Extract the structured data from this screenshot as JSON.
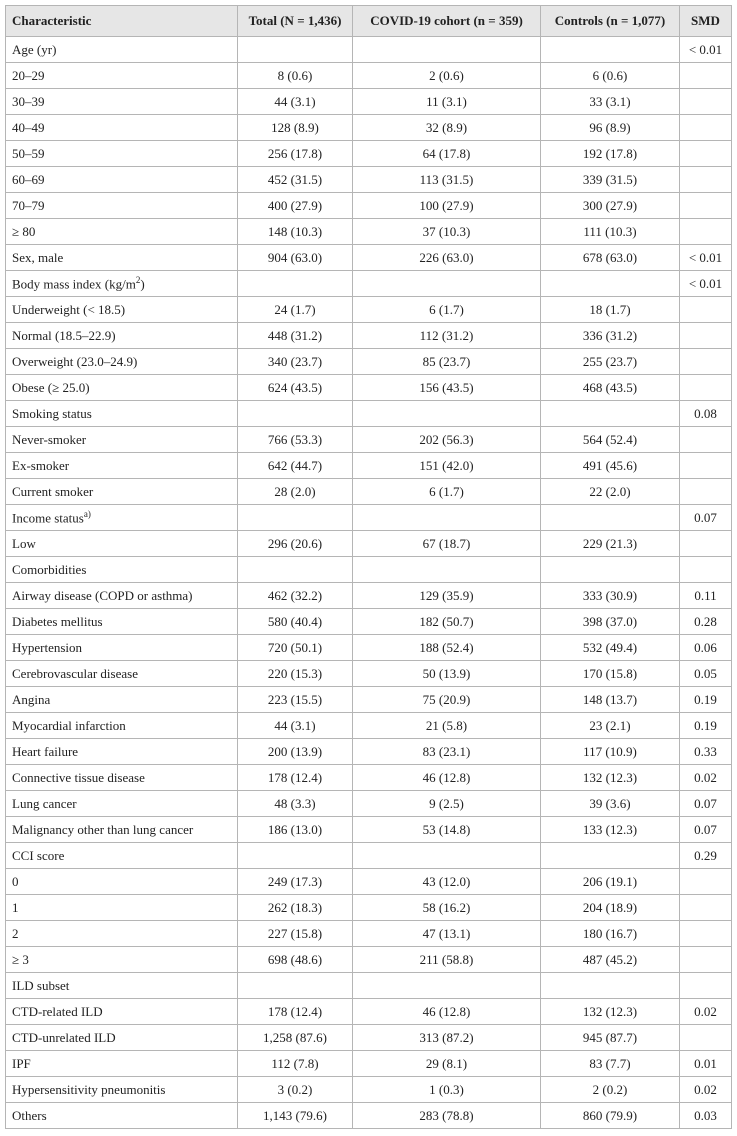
{
  "table": {
    "header": [
      "Characteristic",
      "Total (N = 1,436)",
      "COVID-19 cohort (n = 359)",
      "Controls (n = 1,077)",
      "SMD"
    ],
    "rows": [
      [
        "Age (yr)",
        null,
        null,
        null,
        "< 0.01"
      ],
      [
        "20–29",
        "8 (0.6)",
        "2 (0.6)",
        "6 (0.6)",
        null
      ],
      [
        "30–39",
        "44 (3.1)",
        "11 (3.1)",
        "33 (3.1)",
        null
      ],
      [
        "40–49",
        "128 (8.9)",
        "32 (8.9)",
        "96 (8.9)",
        null
      ],
      [
        "50–59",
        "256 (17.8)",
        "64 (17.8)",
        "192 (17.8)",
        null
      ],
      [
        "60–69",
        "452 (31.5)",
        "113 (31.5)",
        "339 (31.5)",
        null
      ],
      [
        "70–79",
        "400 (27.9)",
        "100 (27.9)",
        "300 (27.9)",
        null
      ],
      [
        "≥ 80",
        "148 (10.3)",
        "37 (10.3)",
        "111 (10.3)",
        null
      ],
      [
        "Sex, male",
        "904 (63.0)",
        "226 (63.0)",
        "678 (63.0)",
        "< 0.01"
      ],
      [
        {
          "text": "Body mass index (kg/m",
          "sup": "2",
          "tail": ")"
        },
        null,
        null,
        null,
        "< 0.01"
      ],
      [
        "Underweight (< 18.5)",
        "24 (1.7)",
        "6 (1.7)",
        "18 (1.7)",
        null
      ],
      [
        "Normal (18.5–22.9)",
        "448 (31.2)",
        "112 (31.2)",
        "336 (31.2)",
        null
      ],
      [
        "Overweight (23.0–24.9)",
        "340 (23.7)",
        "85 (23.7)",
        "255 (23.7)",
        null
      ],
      [
        "Obese (≥ 25.0)",
        "624 (43.5)",
        "156 (43.5)",
        "468 (43.5)",
        null
      ],
      [
        "Smoking status",
        null,
        null,
        null,
        "0.08"
      ],
      [
        "Never-smoker",
        "766 (53.3)",
        "202 (56.3)",
        "564 (52.4)",
        null
      ],
      [
        "Ex-smoker",
        "642 (44.7)",
        "151 (42.0)",
        "491 (45.6)",
        null
      ],
      [
        "Current smoker",
        "28 (2.0)",
        "6 (1.7)",
        "22 (2.0)",
        null
      ],
      [
        {
          "text": "Income status",
          "sup": "a)"
        },
        null,
        null,
        null,
        "0.07"
      ],
      [
        "Low",
        "296 (20.6)",
        "67 (18.7)",
        "229 (21.3)",
        null
      ],
      [
        "Comorbidities",
        null,
        null,
        null,
        null
      ],
      [
        "Airway disease (COPD or asthma)",
        "462 (32.2)",
        "129 (35.9)",
        "333 (30.9)",
        "0.11"
      ],
      [
        "Diabetes mellitus",
        "580 (40.4)",
        "182 (50.7)",
        "398 (37.0)",
        "0.28"
      ],
      [
        "Hypertension",
        "720 (50.1)",
        "188 (52.4)",
        "532 (49.4)",
        "0.06"
      ],
      [
        "Cerebrovascular disease",
        "220 (15.3)",
        "50 (13.9)",
        "170 (15.8)",
        "0.05"
      ],
      [
        "Angina",
        "223 (15.5)",
        "75 (20.9)",
        "148 (13.7)",
        "0.19"
      ],
      [
        "Myocardial infarction",
        "44 (3.1)",
        "21 (5.8)",
        "23 (2.1)",
        "0.19"
      ],
      [
        "Heart failure",
        "200 (13.9)",
        "83 (23.1)",
        "117 (10.9)",
        "0.33"
      ],
      [
        "Connective tissue disease",
        "178 (12.4)",
        "46 (12.8)",
        "132 (12.3)",
        "0.02"
      ],
      [
        "Lung cancer",
        "48 (3.3)",
        "9 (2.5)",
        "39 (3.6)",
        "0.07"
      ],
      [
        "Malignancy other than lung cancer",
        "186 (13.0)",
        "53 (14.8)",
        "133 (12.3)",
        "0.07"
      ],
      [
        "CCI score",
        null,
        null,
        null,
        "0.29"
      ],
      [
        "0",
        "249 (17.3)",
        "43 (12.0)",
        "206 (19.1)",
        null
      ],
      [
        "1",
        "262 (18.3)",
        "58 (16.2)",
        "204 (18.9)",
        null
      ],
      [
        "2",
        "227 (15.8)",
        "47 (13.1)",
        "180 (16.7)",
        null
      ],
      [
        "≥ 3",
        "698 (48.6)",
        "211 (58.8)",
        "487 (45.2)",
        null
      ],
      [
        "ILD subset",
        null,
        null,
        null,
        null
      ],
      [
        "CTD-related ILD",
        "178 (12.4)",
        "46 (12.8)",
        "132 (12.3)",
        "0.02"
      ],
      [
        "CTD-unrelated ILD",
        "1,258 (87.6)",
        "313 (87.2)",
        "945 (87.7)",
        null
      ],
      [
        "IPF",
        "112 (7.8)",
        "29 (8.1)",
        "83 (7.7)",
        "0.01"
      ],
      [
        "Hypersensitivity pneumonitis",
        "3 (0.2)",
        "1 (0.3)",
        "2 (0.2)",
        "0.02"
      ],
      [
        "Others",
        "1,143 (79.6)",
        "283 (78.8)",
        "860 (79.9)",
        "0.03"
      ]
    ]
  }
}
